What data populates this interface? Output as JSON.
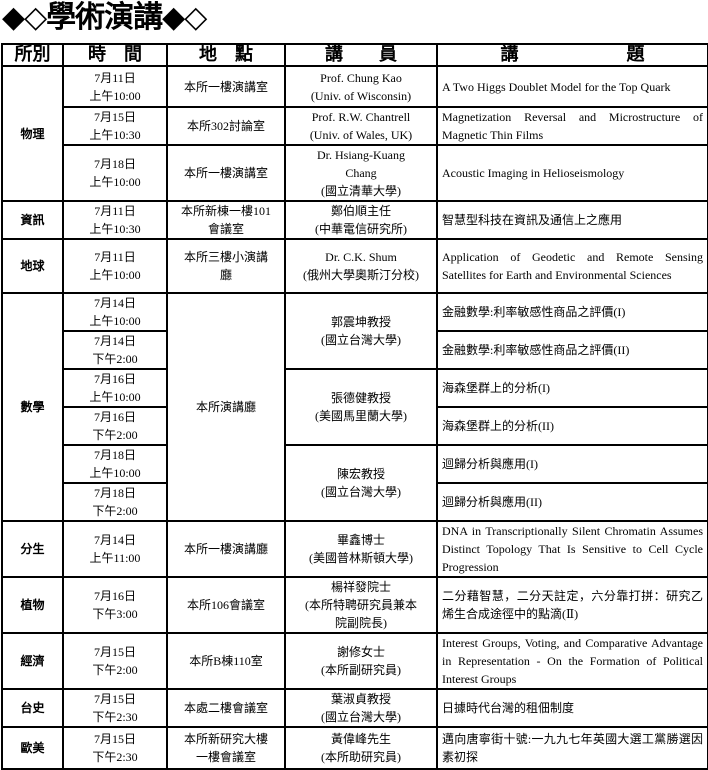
{
  "title": "◆◇學術演講◆◇",
  "headers": [
    "所別",
    "時　間",
    "地　點",
    "講　　員",
    "講　　　　　　題"
  ],
  "rows": [
    {
      "dept": "物理",
      "time": "7月11日\n上午10:00",
      "location": "本所一樓演講室",
      "speaker": "Prof. Chung Kao\n(Univ. of Wisconsin)",
      "topic": "A Two Higgs Doublet Model for the Top Quark"
    },
    {
      "time": "7月15日\n上午10:30",
      "location": "本所302討論室",
      "speaker": "Prof. R.W. Chantrell\n(Univ. of Wales, UK)",
      "topic": "Magnetization Reversal and Microstructure of Magnetic Thin Films"
    },
    {
      "time": "7月18日\n上午10:00",
      "location": "本所一樓演講室",
      "speaker": "Dr. Hsiang-Kuang\nChang\n(國立清華大學)",
      "topic": "Acoustic Imaging in Helioseismology"
    },
    {
      "dept": "資訊",
      "time": "7月11日\n上午10:30",
      "location": "本所新棟一樓101\n會議室",
      "speaker": "鄭伯順主任\n(中華電信研究所)",
      "topic": "智慧型科技在資訊及通信上之應用"
    },
    {
      "dept": "地球",
      "time": "7月11日\n上午10:00",
      "location": "本所三樓小演講\n廳",
      "speaker": "Dr. C.K. Shum\n(俄州大學奧斯汀分校)",
      "topic": "Application of Geodetic and Remote Sensing Satellites for Earth and Environmental Sciences"
    },
    {
      "dept": "數學",
      "time": "7月14日\n上午10:00",
      "location": "本所演講廳",
      "speaker": "郭震坤教授\n(國立台灣大學)",
      "topic": "金融數學:利率敏感性商品之評價(I)"
    },
    {
      "time": "7月14日\n下午2:00",
      "topic": "金融數學:利率敏感性商品之評價(II)"
    },
    {
      "time": "7月16日\n上午10:00",
      "speaker": "張德健教授\n(美國馬里蘭大學)",
      "topic": "海森堡群上的分析(I)"
    },
    {
      "time": "7月16日\n下午2:00",
      "topic": "海森堡群上的分析(II)"
    },
    {
      "time": "7月18日\n上午10:00",
      "speaker": "陳宏教授\n(國立台灣大學)",
      "topic": "迴歸分析與應用(I)"
    },
    {
      "time": "7月18日\n下午2:00",
      "topic": "迴歸分析與應用(II)"
    },
    {
      "dept": "分生",
      "time": "7月14日\n上午11:00",
      "location": "本所一樓演講廳",
      "speaker": "畢鑫博士\n(美國普林斯頓大學)",
      "topic": "DNA in Transcriptionally Silent Chromatin Assumes Distinct Topology That Is Sensitive to Cell Cycle Progression"
    },
    {
      "dept": "植物",
      "time": "7月16日\n下午3:00",
      "location": "本所106會議室",
      "speaker": "楊祥發院士\n(本所特聘研究員兼本\n院副院長)",
      "topic": "二分藉智慧，二分天註定，六分靠打拼：研究乙烯生合成途徑中的點滴(Ⅱ)"
    },
    {
      "dept": "經濟",
      "time": "7月15日\n下午2:00",
      "location": "本所B棟110室",
      "speaker": "謝修女士\n(本所副研究員)",
      "topic": "Interest Groups, Voting, and Comparative Advantage in Representation - On the Formation of Political Interest Groups"
    },
    {
      "dept": "台史",
      "time": "7月15日\n下午2:30",
      "location": "本處二樓會議室",
      "speaker": "葉淑貞教授\n(國立台灣大學)",
      "topic": "日據時代台灣的租佃制度"
    },
    {
      "dept": "歐美",
      "time": "7月15日\n下午2:30",
      "location": "本所新研究大樓\n一樓會議室",
      "speaker": "黃偉峰先生\n(本所助研究員)",
      "topic": "邁向唐寧街十號:一九九七年英國大選工黨勝選因素初探"
    }
  ]
}
